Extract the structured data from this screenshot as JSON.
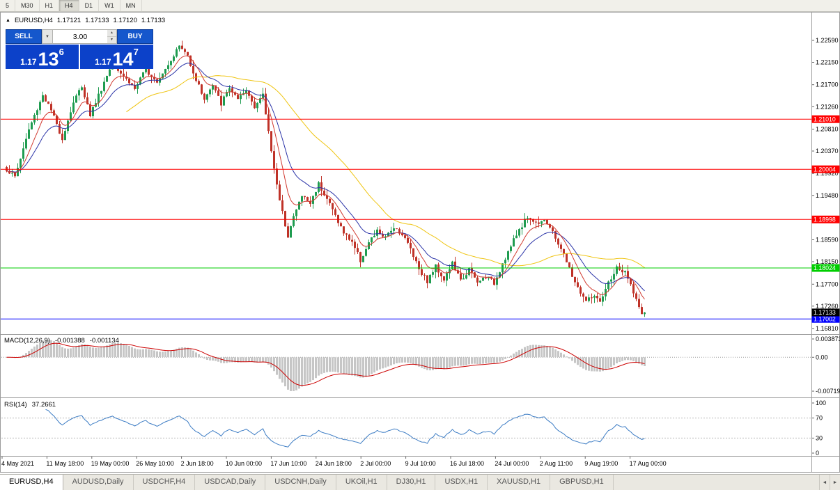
{
  "timeframe_bar": {
    "items": [
      "5",
      "M30",
      "H1",
      "H4",
      "D1",
      "W1",
      "MN"
    ],
    "active": "H4"
  },
  "quote_header": {
    "arrow": "▲",
    "symbol": "EURUSD,H4",
    "open": "1.17121",
    "high": "1.17133",
    "low": "1.17120",
    "close": "1.17133"
  },
  "trade_panel": {
    "sell_label": "SELL",
    "buy_label": "BUY",
    "volume": "3.00",
    "sell_price_base": "1.17",
    "sell_price_big": "13",
    "sell_price_sup": "6",
    "buy_price_base": "1.17",
    "buy_price_big": "14",
    "buy_price_sup": "7"
  },
  "icons": {
    "symbol_arrow": "▲",
    "volume_down": "▼",
    "spin_up": "▲",
    "spin_down": "▼",
    "tab_prev": "◄",
    "tab_next": "►"
  },
  "colors": {
    "toolbar_bg": "#F1F0EA",
    "tab_bg": "#EAE8E1",
    "panel_blue": "#1557CC",
    "price_blue": "#0C41C9"
  },
  "bottom_tabs": {
    "tabs": [
      "EURUSD,H4",
      "AUDUSD,Daily",
      "USDCHF,H4",
      "USDCAD,Daily",
      "USDCNH,Daily",
      "UKOil,H1",
      "DJ30,H1",
      "USDX,H1",
      "XAUUSD,H1",
      "GBPUSD,H1"
    ],
    "active": "EURUSD,H4"
  },
  "chart_data": {
    "type": "candlestick",
    "symbol": "EURUSD",
    "timeframe": "H4",
    "colors": {
      "up": "#1F9C50",
      "down": "#BF3228"
    },
    "price_ticks": [
      "1.22590",
      "1.22150",
      "1.21700",
      "1.21260",
      "1.20810",
      "1.20370",
      "1.19920",
      "1.19480",
      "1.18590",
      "1.18150",
      "1.17700",
      "1.17260",
      "1.16810"
    ],
    "levels": [
      {
        "price": "1.21010",
        "color": "#FF0000"
      },
      {
        "price": "1.20004",
        "color": "#FF0000"
      },
      {
        "price": "1.18998",
        "color": "#FF0000"
      },
      {
        "price": "1.18024",
        "color": "#00CE00"
      },
      {
        "price": "1.17002",
        "color": "#0000FF"
      }
    ],
    "current_price": {
      "price": "1.17133",
      "color": "#000000"
    },
    "time_labels": [
      "4 May 2021",
      "11 May 18:00",
      "19 May 00:00",
      "26 May 10:00",
      "2 Jun 18:00",
      "10 Jun 00:00",
      "17 Jun 10:00",
      "24 Jun 18:00",
      "2 Jul 00:00",
      "9 Jul 10:00",
      "16 Jul 18:00",
      "24 Jul 00:00",
      "2 Aug 11:00",
      "9 Aug 19:00",
      "17 Aug 00:00"
    ],
    "candles": {
      "count": 230,
      "seed": 1337,
      "noise": 0.0005,
      "wick": 0.0013,
      "anchors": [
        [
          0,
          1.2
        ],
        [
          3,
          1.1985
        ],
        [
          8,
          1.208
        ],
        [
          13,
          1.215
        ],
        [
          16,
          1.2118
        ],
        [
          20,
          1.2062
        ],
        [
          24,
          1.2135
        ],
        [
          27,
          1.2168
        ],
        [
          30,
          1.211
        ],
        [
          34,
          1.2162
        ],
        [
          38,
          1.2215
        ],
        [
          42,
          1.2188
        ],
        [
          46,
          1.2162
        ],
        [
          50,
          1.22
        ],
        [
          54,
          1.2178
        ],
        [
          58,
          1.2212
        ],
        [
          62,
          1.2248
        ],
        [
          65,
          1.2228
        ],
        [
          68,
          1.218
        ],
        [
          71,
          1.2142
        ],
        [
          74,
          1.2168
        ],
        [
          77,
          1.2132
        ],
        [
          80,
          1.2165
        ],
        [
          83,
          1.2138
        ],
        [
          86,
          1.2158
        ],
        [
          89,
          1.2128
        ],
        [
          92,
          1.2148
        ],
        [
          95,
          1.204
        ],
        [
          98,
          1.1935
        ],
        [
          101,
          1.1868
        ],
        [
          103,
          1.1905
        ],
        [
          106,
          1.1948
        ],
        [
          109,
          1.1932
        ],
        [
          112,
          1.1972
        ],
        [
          115,
          1.1942
        ],
        [
          118,
          1.1908
        ],
        [
          121,
          1.1872
        ],
        [
          124,
          1.1856
        ],
        [
          127,
          1.1818
        ],
        [
          130,
          1.1852
        ],
        [
          133,
          1.1876
        ],
        [
          136,
          1.1862
        ],
        [
          139,
          1.1886
        ],
        [
          142,
          1.187
        ],
        [
          145,
          1.1842
        ],
        [
          148,
          1.1802
        ],
        [
          151,
          1.1776
        ],
        [
          154,
          1.1806
        ],
        [
          157,
          1.178
        ],
        [
          160,
          1.1812
        ],
        [
          163,
          1.1776
        ],
        [
          166,
          1.18
        ],
        [
          169,
          1.1772
        ],
        [
          172,
          1.1786
        ],
        [
          175,
          1.1772
        ],
        [
          178,
          1.1812
        ],
        [
          181,
          1.1846
        ],
        [
          184,
          1.188
        ],
        [
          187,
          1.1906
        ],
        [
          190,
          1.1892
        ],
        [
          193,
          1.1902
        ],
        [
          196,
          1.1872
        ],
        [
          199,
          1.1842
        ],
        [
          202,
          1.18
        ],
        [
          205,
          1.1762
        ],
        [
          208,
          1.1736
        ],
        [
          211,
          1.1748
        ],
        [
          213,
          1.173
        ],
        [
          216,
          1.1772
        ],
        [
          219,
          1.1802
        ],
        [
          222,
          1.1792
        ],
        [
          225,
          1.1756
        ],
        [
          228,
          1.1706
        ],
        [
          229,
          1.17133
        ]
      ]
    },
    "moving_averages": [
      {
        "name": "slow-sma",
        "method": "sma",
        "period": 44,
        "color": "#EFC410"
      },
      {
        "name": "mid-ema",
        "method": "ema",
        "period": 17,
        "color": "#2B34A8"
      },
      {
        "name": "fast-ema",
        "method": "ema",
        "period": 8,
        "color": "#D03A30"
      }
    ],
    "macd": {
      "title": "MACD(12,26,9)",
      "value_main": "-0.001388",
      "value_signal": "-0.001134",
      "params": [
        12,
        26,
        9
      ],
      "axis_ticks": [
        "0.003873",
        "0.00",
        "-0.00719"
      ],
      "range": {
        "max": 0.003873,
        "min": -0.00719
      },
      "hist_color": "#C6C6C6",
      "signal_color": "#CC0000"
    },
    "rsi": {
      "title": "RSI(14)",
      "value": "37.2661",
      "period": 14,
      "axis_ticks": [
        100,
        70,
        30,
        0
      ],
      "levels": [
        70,
        30
      ],
      "color": "#3C7CC4"
    }
  }
}
